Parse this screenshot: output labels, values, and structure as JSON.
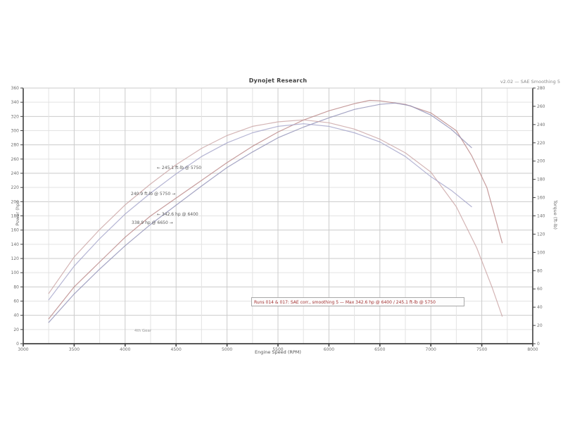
{
  "header": {
    "title": "Dynojet Research",
    "meta": "v2.02 — SAE Smoothing 5"
  },
  "plot_notes": {
    "gear": "4th Gear",
    "note": "Runs 014 & 017: SAE corr., smoothing 5 — Max 342.6 hp @ 6400 / 245.1 ft-lb @ 5750"
  },
  "annotations": [
    {
      "label": "← 245.1 ft-lb @ 5750"
    },
    {
      "label": "240.9 ft-lb @ 5750 →"
    },
    {
      "label": "← 342.6 hp @ 6400"
    },
    {
      "label": "338.9 hp @ 6650 →"
    }
  ],
  "chart_data": {
    "type": "line",
    "title": "Dynojet Research",
    "xlabel": "Engine Speed (RPM)",
    "ylabel_left": "Power (hp)",
    "ylabel_right": "Torque (ft-lb)",
    "x_range": [
      3000,
      8000
    ],
    "x_label_step": 500,
    "x_grid_step": 250,
    "y_left_range": [
      0,
      360
    ],
    "y_left_step": 20,
    "y_right_range": [
      0,
      280
    ],
    "y_right_step": 20,
    "grid": true,
    "legend_position": "none",
    "colors": {
      "grid_minor": "#e3e3e3",
      "grid_major": "#cbcbcb",
      "axis": "#3f3f3f",
      "tick_text": "#6e6e6e",
      "note_text": "#a23030"
    },
    "series": [
      {
        "name": "Run 1 Power",
        "unit": "hp",
        "axis": "left",
        "color": "#b98585",
        "points": [
          [
            3250,
            35
          ],
          [
            3500,
            80
          ],
          [
            3750,
            115
          ],
          [
            4000,
            150
          ],
          [
            4250,
            180
          ],
          [
            4500,
            205
          ],
          [
            4750,
            230
          ],
          [
            5000,
            255
          ],
          [
            5250,
            278
          ],
          [
            5500,
            298
          ],
          [
            5750,
            315
          ],
          [
            6000,
            328
          ],
          [
            6250,
            338
          ],
          [
            6400,
            342.6
          ],
          [
            6500,
            342
          ],
          [
            6750,
            337
          ],
          [
            7000,
            325
          ],
          [
            7250,
            300
          ],
          [
            7400,
            265
          ],
          [
            7550,
            220
          ],
          [
            7700,
            142
          ]
        ]
      },
      {
        "name": "Run 2 Power",
        "unit": "hp",
        "axis": "left",
        "color": "#8f8fb5",
        "points": [
          [
            3250,
            30
          ],
          [
            3500,
            70
          ],
          [
            3750,
            105
          ],
          [
            4000,
            138
          ],
          [
            4250,
            168
          ],
          [
            4500,
            195
          ],
          [
            4750,
            222
          ],
          [
            5000,
            248
          ],
          [
            5250,
            270
          ],
          [
            5500,
            290
          ],
          [
            5750,
            305
          ],
          [
            6000,
            318
          ],
          [
            6250,
            330
          ],
          [
            6500,
            337
          ],
          [
            6650,
            338.9
          ],
          [
            6800,
            335
          ],
          [
            7000,
            322
          ],
          [
            7200,
            302
          ],
          [
            7300,
            289
          ],
          [
            7400,
            276
          ]
        ]
      },
      {
        "name": "Run 1 Torque",
        "unit": "ft-lb",
        "axis": "right",
        "color": "#c9a3a3",
        "points": [
          [
            3250,
            55
          ],
          [
            3500,
            95
          ],
          [
            3750,
            125
          ],
          [
            4000,
            152
          ],
          [
            4250,
            175
          ],
          [
            4500,
            196
          ],
          [
            4750,
            214
          ],
          [
            5000,
            228
          ],
          [
            5250,
            238
          ],
          [
            5500,
            243
          ],
          [
            5750,
            245.1
          ],
          [
            6000,
            242
          ],
          [
            6250,
            235
          ],
          [
            6500,
            224
          ],
          [
            6750,
            209
          ],
          [
            7000,
            188
          ],
          [
            7250,
            150
          ],
          [
            7450,
            105
          ],
          [
            7600,
            62
          ],
          [
            7700,
            30
          ]
        ]
      },
      {
        "name": "Run 2 Torque",
        "unit": "ft-lb",
        "axis": "right",
        "color": "#a3a3c9",
        "points": [
          [
            3250,
            48
          ],
          [
            3500,
            85
          ],
          [
            3750,
            115
          ],
          [
            4000,
            142
          ],
          [
            4250,
            165
          ],
          [
            4500,
            186
          ],
          [
            4750,
            205
          ],
          [
            5000,
            220
          ],
          [
            5250,
            231
          ],
          [
            5500,
            238
          ],
          [
            5750,
            240.9
          ],
          [
            6000,
            238
          ],
          [
            6250,
            231
          ],
          [
            6500,
            221
          ],
          [
            6750,
            205
          ],
          [
            7000,
            183
          ],
          [
            7200,
            168
          ],
          [
            7400,
            150
          ]
        ]
      }
    ]
  }
}
